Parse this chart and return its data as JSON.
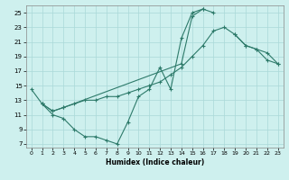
{
  "xlabel": "Humidex (Indice chaleur)",
  "bg_color": "#cef0ee",
  "grid_color": "#aad8d8",
  "line_color": "#2d7a6a",
  "xlim": [
    -0.5,
    23.5
  ],
  "ylim": [
    6.5,
    26.0
  ],
  "xticks": [
    0,
    1,
    2,
    3,
    4,
    5,
    6,
    7,
    8,
    9,
    10,
    11,
    12,
    13,
    14,
    15,
    16,
    17,
    18,
    19,
    20,
    21,
    22,
    23
  ],
  "yticks": [
    7,
    9,
    11,
    13,
    15,
    17,
    19,
    21,
    23,
    25
  ],
  "line1_x": [
    0,
    1,
    2,
    3,
    4,
    5,
    6,
    7,
    8,
    9,
    10,
    11,
    12,
    13,
    14,
    15,
    16
  ],
  "line1_y": [
    14.5,
    12.5,
    11.0,
    10.5,
    9.0,
    8.0,
    8.0,
    7.5,
    7.0,
    10.0,
    13.5,
    14.5,
    17.5,
    14.5,
    21.5,
    25.0,
    25.5
  ],
  "line2_x": [
    1,
    2,
    3,
    4,
    5,
    6,
    7,
    8,
    9,
    10,
    11,
    12,
    13,
    14,
    15,
    16,
    17,
    18,
    19,
    20,
    21,
    22,
    23
  ],
  "line2_y": [
    12.5,
    11.5,
    12.0,
    12.5,
    13.0,
    13.0,
    13.5,
    13.5,
    14.0,
    14.5,
    15.0,
    15.5,
    16.5,
    17.5,
    19.0,
    20.5,
    22.5,
    23.0,
    22.0,
    20.5,
    20.0,
    19.5,
    18.0
  ],
  "line3a_x": [
    1,
    2,
    3,
    14,
    15,
    16,
    17
  ],
  "line3a_y": [
    12.5,
    11.5,
    12.0,
    18.0,
    24.5,
    25.5,
    25.0
  ],
  "line3b_x": [
    19,
    20,
    21,
    22,
    23
  ],
  "line3b_y": [
    22.0,
    20.5,
    20.0,
    18.5,
    18.0
  ]
}
